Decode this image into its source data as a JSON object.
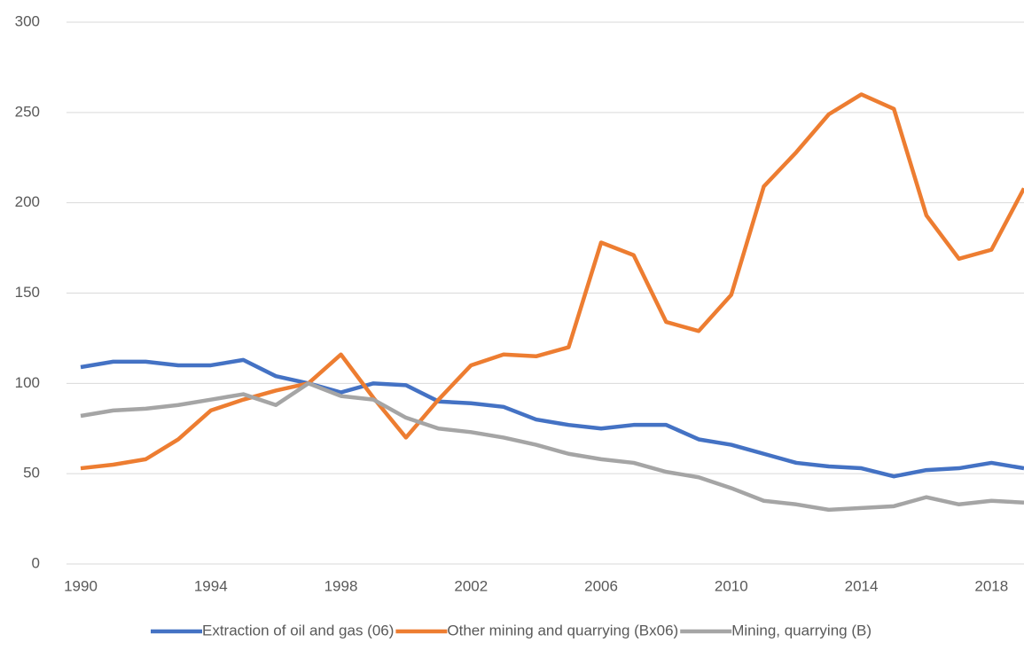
{
  "chart_data": {
    "type": "line",
    "x": [
      1990,
      1991,
      1992,
      1993,
      1994,
      1995,
      1996,
      1997,
      1998,
      1999,
      2000,
      2001,
      2002,
      2003,
      2004,
      2005,
      2006,
      2007,
      2008,
      2009,
      2010,
      2011,
      2012,
      2013,
      2014,
      2015,
      2016,
      2017,
      2018,
      2019
    ],
    "series": [
      {
        "name": "Extraction of oil and gas (06)",
        "color": "#4472c4",
        "values": [
          109,
          112,
          112,
          110,
          110,
          113,
          104,
          100,
          95,
          100,
          99,
          90,
          89,
          87,
          80,
          77,
          75,
          77,
          77,
          69,
          66,
          61,
          56,
          54,
          53,
          48.5,
          52,
          53,
          56,
          53
        ]
      },
      {
        "name": "Other mining and quarrying (Bx06)",
        "color": "#ed7d31",
        "values": [
          53,
          55,
          58,
          69,
          85,
          91,
          96,
          100,
          116,
          92,
          70,
          91,
          110,
          116,
          115,
          120,
          178,
          171,
          134,
          129,
          149,
          209,
          228,
          249,
          260,
          252,
          193,
          169,
          174,
          208
        ]
      },
      {
        "name": "Mining, quarrying (B)",
        "color": "#a5a5a5",
        "values": [
          82,
          85,
          86,
          88,
          91,
          94,
          88,
          100,
          93,
          91,
          81,
          75,
          73,
          70,
          66,
          61,
          58,
          56,
          51,
          48,
          42,
          35,
          33,
          30,
          31,
          32,
          37,
          33,
          35,
          34
        ]
      }
    ],
    "xlim": [
      1990,
      2019
    ],
    "xticks": [
      1990,
      1994,
      1998,
      2002,
      2006,
      2010,
      2014,
      2018
    ],
    "ylim": [
      0,
      300
    ],
    "yticks": [
      0,
      50,
      100,
      150,
      200,
      250,
      300
    ],
    "grid": true,
    "legend": "bottom"
  }
}
